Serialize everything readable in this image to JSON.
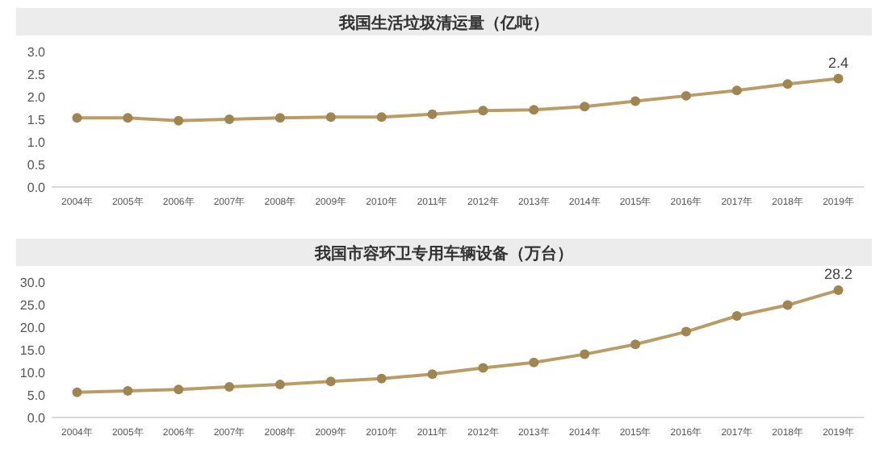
{
  "chart_data": [
    {
      "type": "line",
      "title": "我国生活垃圾清运量（亿吨）",
      "categories": [
        "2004年",
        "2005年",
        "2006年",
        "2007年",
        "2008年",
        "2009年",
        "2010年",
        "2011年",
        "2012年",
        "2013年",
        "2014年",
        "2015年",
        "2016年",
        "2017年",
        "2018年",
        "2019年"
      ],
      "series": [
        {
          "color": "#b99d68",
          "values": [
            1.53,
            1.53,
            1.47,
            1.5,
            1.53,
            1.55,
            1.55,
            1.61,
            1.69,
            1.71,
            1.78,
            1.9,
            2.02,
            2.14,
            2.28,
            2.4
          ],
          "value_labels": [
            null,
            null,
            null,
            null,
            null,
            null,
            null,
            null,
            null,
            null,
            null,
            null,
            null,
            null,
            null,
            "2.4"
          ]
        }
      ],
      "ylim": [
        0,
        3
      ],
      "yticks": [
        {
          "value": 0,
          "label": "0.0"
        },
        0.5,
        {
          "value": 1,
          "label": "1.0"
        },
        1.5,
        {
          "value": 2,
          "label": "2.0"
        },
        2.5,
        {
          "value": 3,
          "label": "3.0"
        }
      ],
      "marker": "circle",
      "grid": false
    },
    {
      "type": "line",
      "title": "我国市容环卫专用车辆设备（万台）",
      "categories": [
        "2004年",
        "2005年",
        "2006年",
        "2007年",
        "2008年",
        "2009年",
        "2010年",
        "2011年",
        "2012年",
        "2013年",
        "2014年",
        "2015年",
        "2016年",
        "2017年",
        "2018年",
        "2019年"
      ],
      "series": [
        {
          "color": "#b99d68",
          "values": [
            5.6,
            5.9,
            6.2,
            6.8,
            7.3,
            8.0,
            8.6,
            9.6,
            11.0,
            12.2,
            14.0,
            16.2,
            19.0,
            22.5,
            24.9,
            28.2
          ],
          "value_labels": [
            null,
            null,
            null,
            null,
            null,
            null,
            null,
            null,
            null,
            null,
            null,
            null,
            null,
            null,
            null,
            "28.2"
          ]
        }
      ],
      "ylim": [
        0,
        30
      ],
      "yticks": [
        {
          "value": 0,
          "label": "0.0"
        },
        {
          "value": 5,
          "label": "5.0"
        },
        {
          "value": 10,
          "label": "10.0"
        },
        {
          "value": 15,
          "label": "15.0"
        },
        {
          "value": 20,
          "label": "20.0"
        },
        {
          "value": 25,
          "label": "25.0"
        },
        {
          "value": 30,
          "label": "30.0"
        }
      ],
      "marker": "circle",
      "grid": false
    }
  ]
}
